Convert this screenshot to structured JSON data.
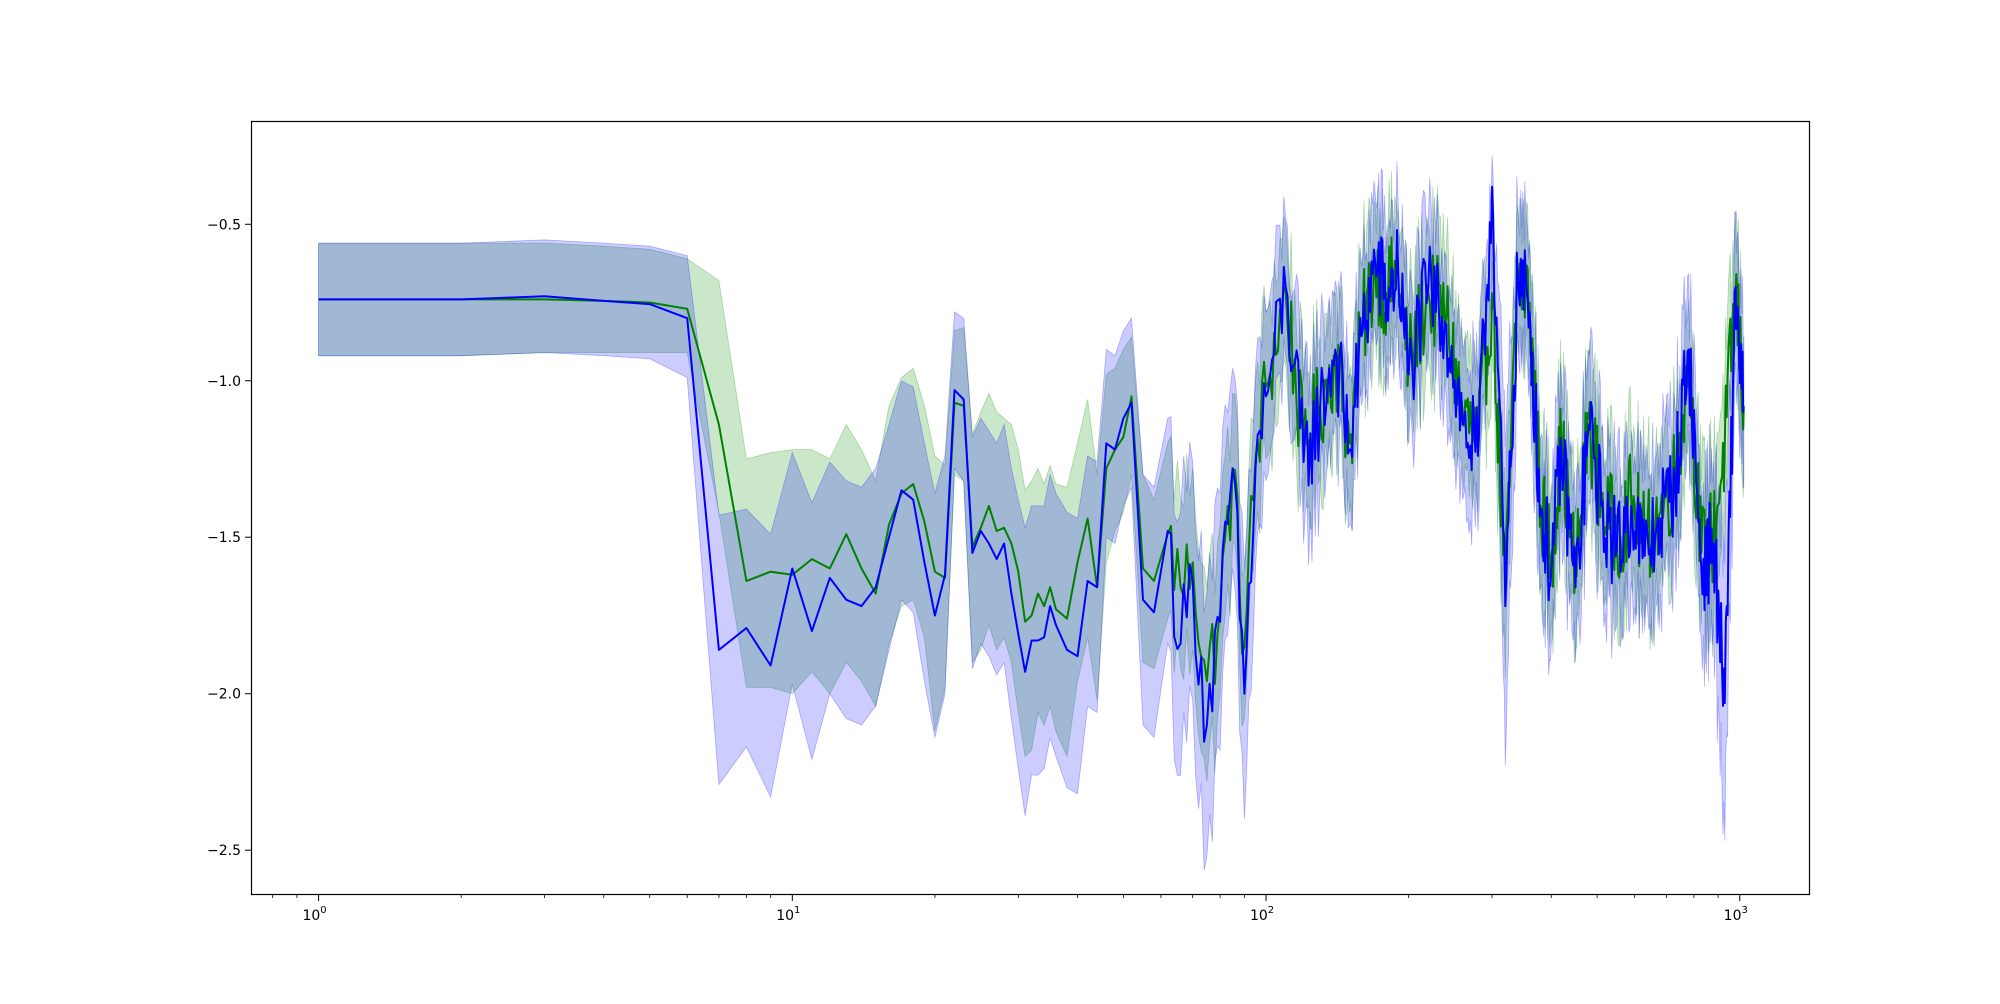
{
  "chart_data": {
    "type": "line",
    "title": "",
    "xlabel": "",
    "ylabel": "",
    "x_scale": "log",
    "xlim": [
      0.72,
      1400
    ],
    "ylim": [
      -2.64,
      -0.17
    ],
    "grid": false,
    "legend": "none",
    "x_ticks": [
      {
        "value": 1,
        "base": "10",
        "exp": "0"
      },
      {
        "value": 10,
        "base": "10",
        "exp": "1"
      },
      {
        "value": 100,
        "base": "10",
        "exp": "2"
      },
      {
        "value": 1000,
        "base": "10",
        "exp": "3"
      }
    ],
    "y_ticks": [
      {
        "value": -0.5,
        "label": "−0.5"
      },
      {
        "value": -1.0,
        "label": "−1.0"
      },
      {
        "value": -1.5,
        "label": "−1.5"
      },
      {
        "value": -2.0,
        "label": "−2.0"
      },
      {
        "value": -2.5,
        "label": "−2.5"
      }
    ],
    "series": [
      {
        "color": "#008000",
        "band_color": "#2ca02c",
        "band_opacity": 0.25,
        "x": [
          1,
          2,
          3,
          4,
          5,
          6,
          7,
          8,
          9,
          10,
          11,
          12,
          13,
          14,
          15,
          16,
          17,
          18,
          19,
          20,
          21,
          22,
          23,
          24,
          25,
          26,
          27,
          28,
          29,
          30,
          31,
          32,
          33,
          34,
          35,
          36,
          38,
          40,
          42,
          44,
          46,
          48,
          50,
          52,
          55,
          58,
          62,
          66,
          70,
          75,
          80,
          85,
          90,
          95,
          100,
          110,
          120,
          130,
          140,
          150,
          160,
          170,
          180,
          190,
          200,
          220,
          240,
          260,
          280,
          300,
          320,
          340,
          360,
          380,
          400,
          420,
          450,
          480,
          510,
          550,
          590,
          630,
          680,
          730,
          780,
          830,
          880,
          930,
          980,
          1020
        ],
        "y": [
          -0.74,
          -0.74,
          -0.74,
          -0.745,
          -0.75,
          -0.77,
          -1.14,
          -1.64,
          -1.61,
          -1.62,
          -1.57,
          -1.6,
          -1.49,
          -1.6,
          -1.68,
          -1.46,
          -1.36,
          -1.33,
          -1.45,
          -1.61,
          -1.63,
          -1.07,
          -1.08,
          -1.53,
          -1.47,
          -1.4,
          -1.48,
          -1.47,
          -1.52,
          -1.61,
          -1.77,
          -1.75,
          -1.68,
          -1.72,
          -1.66,
          -1.73,
          -1.76,
          -1.58,
          -1.44,
          -1.66,
          -1.28,
          -1.22,
          -1.18,
          -1.05,
          -1.6,
          -1.64,
          -1.49,
          -1.66,
          -1.58,
          -1.96,
          -1.74,
          -1.28,
          -1.85,
          -1.25,
          -1.02,
          -0.72,
          -1.22,
          -1.08,
          -0.92,
          -1.2,
          -0.82,
          -0.64,
          -0.72,
          -0.66,
          -0.95,
          -0.72,
          -0.8,
          -1.1,
          -1.2,
          -0.72,
          -1.68,
          -0.65,
          -0.75,
          -1.4,
          -1.56,
          -1.2,
          -1.63,
          -1.12,
          -1.38,
          -1.5,
          -1.38,
          -1.52,
          -1.42,
          -1.3,
          -0.95,
          -1.55,
          -1.5,
          -1.2,
          -0.7,
          -1.08
        ],
        "lower": [
          -0.92,
          -0.92,
          -0.91,
          -0.91,
          -0.91,
          -0.91,
          -1.42,
          -1.98,
          -1.98,
          -2.0,
          -1.93,
          -2.0,
          -1.9,
          -1.96,
          -2.04,
          -1.84,
          -1.72,
          -1.7,
          -1.82,
          -2.12,
          -1.98,
          -1.3,
          -1.32,
          -1.9,
          -1.86,
          -1.78,
          -1.86,
          -1.82,
          -1.9,
          -2.06,
          -2.2,
          -2.18,
          -2.06,
          -2.1,
          -2.04,
          -2.12,
          -2.2,
          -1.96,
          -1.82,
          -2.02,
          -1.58,
          -1.48,
          -1.42,
          -1.3,
          -1.9,
          -1.92,
          -1.76,
          -1.92,
          -1.86,
          -2.28,
          -2.0,
          -1.52,
          -2.08,
          -1.48,
          -1.25,
          -0.95,
          -1.42,
          -1.3,
          -1.12,
          -1.42,
          -1.02,
          -0.84,
          -0.92,
          -0.86,
          -1.14,
          -0.94,
          -1.0,
          -1.3,
          -1.42,
          -0.92,
          -1.95,
          -0.85,
          -0.95,
          -1.62,
          -1.78,
          -1.4,
          -1.86,
          -1.32,
          -1.6,
          -1.72,
          -1.6,
          -1.76,
          -1.64,
          -1.52,
          -1.16,
          -1.78,
          -1.74,
          -1.42,
          -0.9,
          -1.3
        ],
        "upper": [
          -0.56,
          -0.56,
          -0.56,
          -0.57,
          -0.58,
          -0.61,
          -0.68,
          -1.25,
          -1.23,
          -1.22,
          -1.22,
          -1.25,
          -1.14,
          -1.22,
          -1.32,
          -1.08,
          -0.99,
          -0.96,
          -1.08,
          -1.24,
          -1.27,
          -0.84,
          -0.83,
          -1.17,
          -1.1,
          -1.04,
          -1.1,
          -1.12,
          -1.14,
          -1.22,
          -1.35,
          -1.32,
          -1.28,
          -1.33,
          -1.27,
          -1.33,
          -1.34,
          -1.2,
          -1.06,
          -1.3,
          -0.98,
          -0.96,
          -0.9,
          -0.86,
          -1.3,
          -1.38,
          -1.2,
          -1.38,
          -1.28,
          -1.66,
          -1.46,
          -1.04,
          -1.6,
          -1.0,
          -0.78,
          -0.5,
          -1.0,
          -0.86,
          -0.72,
          -0.98,
          -0.6,
          -0.44,
          -0.5,
          -0.46,
          -0.74,
          -0.5,
          -0.58,
          -0.88,
          -0.98,
          -0.5,
          -1.44,
          -0.44,
          -0.55,
          -1.18,
          -1.34,
          -0.98,
          -1.4,
          -0.92,
          -1.16,
          -1.28,
          -1.16,
          -1.28,
          -1.2,
          -1.08,
          -0.74,
          -1.32,
          -1.26,
          -0.98,
          -0.5,
          -0.86
        ]
      },
      {
        "color": "#0000ff",
        "band_color": "#0000ff",
        "band_opacity": 0.2,
        "x": [
          1,
          2,
          3,
          4,
          5,
          6,
          7,
          8,
          9,
          10,
          11,
          12,
          13,
          14,
          15,
          16,
          17,
          18,
          19,
          20,
          21,
          22,
          23,
          24,
          25,
          26,
          27,
          28,
          29,
          30,
          31,
          32,
          33,
          34,
          35,
          36,
          38,
          40,
          42,
          44,
          46,
          48,
          50,
          52,
          55,
          58,
          62,
          66,
          70,
          75,
          80,
          85,
          90,
          95,
          100,
          110,
          120,
          130,
          140,
          150,
          160,
          170,
          180,
          190,
          200,
          220,
          240,
          260,
          280,
          300,
          320,
          340,
          360,
          380,
          400,
          420,
          450,
          480,
          510,
          550,
          590,
          630,
          680,
          730,
          780,
          830,
          880,
          930,
          980,
          1020
        ],
        "y": [
          -0.74,
          -0.74,
          -0.73,
          -0.745,
          -0.755,
          -0.8,
          -1.86,
          -1.79,
          -1.91,
          -1.6,
          -1.8,
          -1.63,
          -1.7,
          -1.72,
          -1.66,
          -1.5,
          -1.35,
          -1.38,
          -1.58,
          -1.75,
          -1.62,
          -1.03,
          -1.06,
          -1.55,
          -1.48,
          -1.52,
          -1.57,
          -1.52,
          -1.68,
          -1.81,
          -1.93,
          -1.83,
          -1.83,
          -1.82,
          -1.72,
          -1.78,
          -1.86,
          -1.88,
          -1.64,
          -1.66,
          -1.2,
          -1.22,
          -1.12,
          -1.07,
          -1.7,
          -1.74,
          -1.48,
          -1.84,
          -1.64,
          -2.1,
          -1.77,
          -1.28,
          -2.0,
          -1.28,
          -1.05,
          -0.7,
          -1.26,
          -1.1,
          -0.9,
          -1.22,
          -0.84,
          -0.62,
          -0.74,
          -0.64,
          -0.98,
          -0.7,
          -0.82,
          -1.14,
          -1.24,
          -0.38,
          -1.72,
          -0.66,
          -0.78,
          -1.42,
          -1.6,
          -1.22,
          -1.66,
          -1.14,
          -1.4,
          -1.54,
          -1.4,
          -1.56,
          -1.44,
          -1.32,
          -0.9,
          -1.6,
          -1.52,
          -2.03,
          -0.7,
          -1.1
        ],
        "lower": [
          -0.92,
          -0.92,
          -0.91,
          -0.92,
          -0.93,
          -0.99,
          -2.29,
          -2.17,
          -2.33,
          -1.97,
          -2.21,
          -2.0,
          -2.08,
          -2.1,
          -2.04,
          -1.86,
          -1.7,
          -1.74,
          -1.96,
          -2.14,
          -2.0,
          -1.28,
          -1.32,
          -1.92,
          -1.84,
          -1.88,
          -1.94,
          -1.9,
          -2.08,
          -2.24,
          -2.39,
          -2.26,
          -2.26,
          -2.24,
          -2.14,
          -2.2,
          -2.3,
          -2.32,
          -2.04,
          -2.06,
          -1.5,
          -1.52,
          -1.4,
          -1.34,
          -2.1,
          -2.14,
          -1.84,
          -2.26,
          -2.02,
          -2.52,
          -2.18,
          -1.6,
          -2.4,
          -1.6,
          -1.32,
          -0.92,
          -1.52,
          -1.34,
          -1.12,
          -1.46,
          -1.06,
          -0.84,
          -0.96,
          -0.86,
          -1.2,
          -0.92,
          -1.04,
          -1.38,
          -1.48,
          -0.62,
          -2.23,
          -0.88,
          -1.0,
          -1.66,
          -1.84,
          -1.46,
          -1.9,
          -1.38,
          -1.64,
          -1.78,
          -1.64,
          -1.8,
          -1.68,
          -1.56,
          -1.14,
          -1.84,
          -1.78,
          -2.47,
          -0.94,
          -1.34
        ],
        "upper": [
          -0.56,
          -0.56,
          -0.55,
          -0.56,
          -0.57,
          -0.6,
          -1.43,
          -1.41,
          -1.49,
          -1.23,
          -1.39,
          -1.26,
          -1.32,
          -1.34,
          -1.28,
          -1.14,
          -1.0,
          -1.02,
          -1.2,
          -1.36,
          -1.24,
          -0.78,
          -0.8,
          -1.18,
          -1.12,
          -1.16,
          -1.2,
          -1.14,
          -1.28,
          -1.38,
          -1.47,
          -1.4,
          -1.4,
          -1.4,
          -1.3,
          -1.36,
          -1.42,
          -1.44,
          -1.24,
          -1.26,
          -0.9,
          -0.92,
          -0.84,
          -0.8,
          -1.3,
          -1.34,
          -1.12,
          -1.42,
          -1.26,
          -1.68,
          -1.36,
          -0.96,
          -1.6,
          -0.96,
          -0.78,
          -0.48,
          -1.0,
          -0.86,
          -0.68,
          -0.98,
          -0.62,
          -0.4,
          -0.52,
          -0.42,
          -0.76,
          -0.48,
          -0.6,
          -0.9,
          -1.0,
          -0.28,
          -1.21,
          -0.44,
          -0.56,
          -1.18,
          -1.36,
          -0.98,
          -1.42,
          -0.9,
          -1.16,
          -1.3,
          -1.16,
          -1.32,
          -1.2,
          -1.08,
          -0.66,
          -1.36,
          -1.26,
          -1.59,
          -0.46,
          -0.86
        ]
      }
    ]
  }
}
